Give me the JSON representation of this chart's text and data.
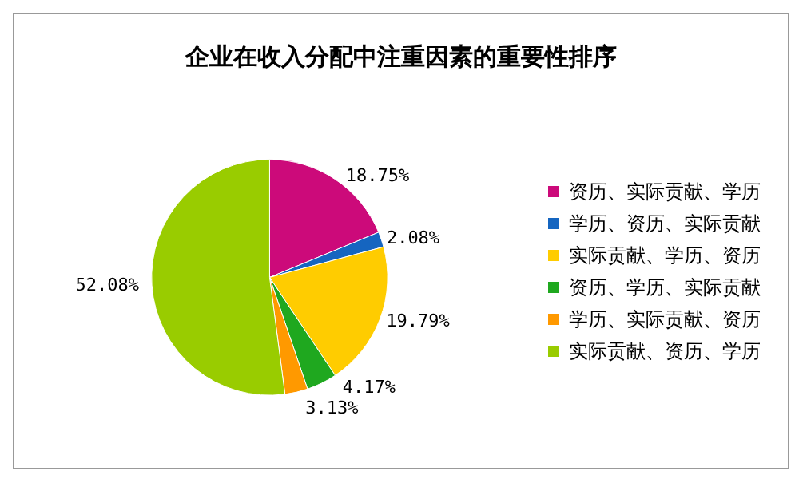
{
  "chart_data": {
    "type": "pie",
    "title": "企业在收入分配中注重因素的重要性排序",
    "categories": [
      "资历、实际贡献、学历",
      "学历、资历、实际贡献",
      "实际贡献、学历、资历",
      "资历、学历、实际贡献",
      "学历、实际贡献、资历",
      "实际贡献、资历、学历"
    ],
    "values": [
      18.75,
      2.08,
      19.79,
      4.17,
      3.13,
      52.08
    ],
    "value_labels": [
      "18.75%",
      "2.08%",
      "19.79%",
      "4.17%",
      "3.13%",
      "52.08%"
    ],
    "colors": [
      "#cc0a7a",
      "#1565c0",
      "#ffcc00",
      "#1fa81f",
      "#ff9900",
      "#99cc00"
    ],
    "legend": "right"
  }
}
